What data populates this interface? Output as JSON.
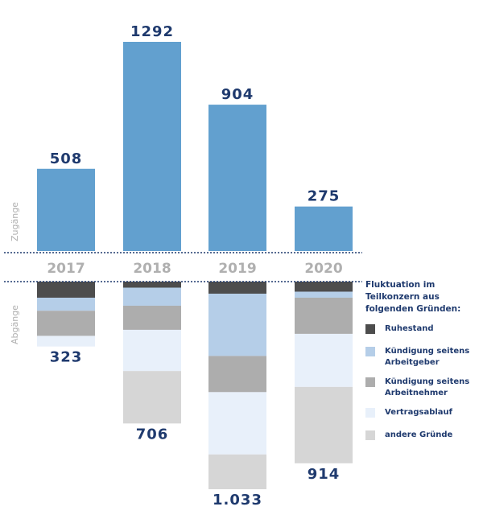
{
  "chart_data": {
    "type": "bar",
    "categories": [
      "2017",
      "2018",
      "2019",
      "2020"
    ],
    "zugaenge": {
      "axis_label": "Zugänge",
      "values": [
        508,
        1292,
        904,
        275
      ],
      "value_labels": [
        "508",
        "1292",
        "904",
        "275"
      ],
      "color": "#62a0cf"
    },
    "abgaenge": {
      "axis_label": "Abgänge",
      "totals": [
        323,
        706,
        1033,
        914
      ],
      "total_labels": [
        "323",
        "706",
        "1.033",
        "914"
      ],
      "series": [
        {
          "name": "Ruhestand",
          "color": "#4d4d4d",
          "values": [
            80,
            30,
            60,
            50
          ]
        },
        {
          "name": "Kündigung seitens Arbeitgeber",
          "color": "#b5cee8",
          "values": [
            65,
            90,
            310,
            30
          ]
        },
        {
          "name": "Kündigung seitens Arbeitnehmer",
          "color": "#adadad",
          "values": [
            125,
            120,
            180,
            180
          ]
        },
        {
          "name": "Vertragsablauf",
          "color": "#e8f0fa",
          "values": [
            53,
            205,
            310,
            264
          ]
        },
        {
          "name": "andere Gründe",
          "color": "#d6d6d6",
          "values": [
            0,
            261,
            173,
            380
          ]
        }
      ]
    },
    "legend_title": "Fluktuation im Teilkonzern aus folgenden Gründen:",
    "text_color": "#1f3a6e",
    "year_color": "#b0b0b0"
  }
}
